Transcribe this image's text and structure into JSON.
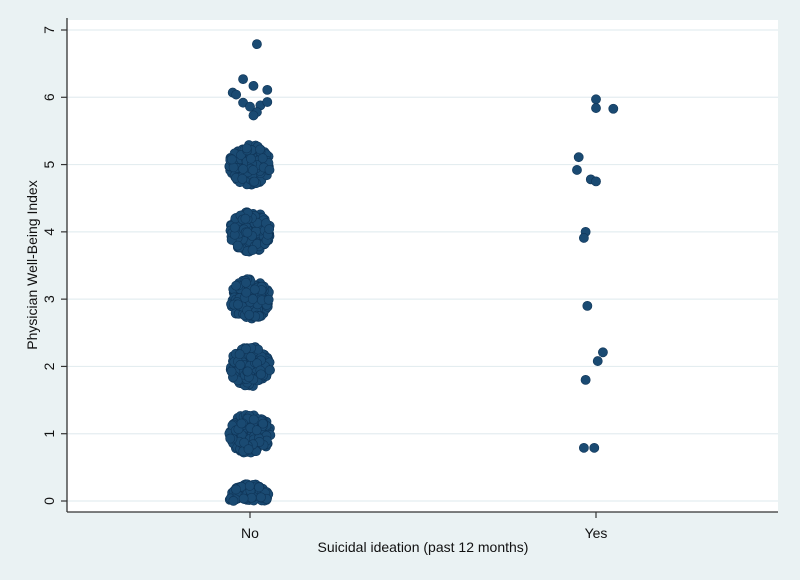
{
  "chart_data": {
    "type": "scatter",
    "title": "",
    "xlabel": "Suicidal ideation (past 12 months)",
    "ylabel": "Physician Well-Being Index",
    "categories": [
      "No",
      "Yes"
    ],
    "yticks": [
      "0",
      "1",
      "2",
      "3",
      "4",
      "5",
      "6",
      "7"
    ],
    "ylim": [
      0,
      7
    ],
    "grid": true,
    "legend": "none",
    "colors": {
      "marker": "#1a4a72",
      "background": "#eaf2f3",
      "plot": "#ffffff",
      "grid": "#e4edf0",
      "axis": "#333333"
    },
    "series": [
      {
        "name": "No",
        "jittered_integer_levels": [
          0,
          1,
          2,
          3,
          4,
          5,
          6
        ],
        "extra_points": [
          {
            "dx": 0.02,
            "y": 6.79
          },
          {
            "dx": -0.02,
            "y": 6.27
          },
          {
            "dx": 0.01,
            "y": 6.17
          },
          {
            "dx": 0.05,
            "y": 6.11
          },
          {
            "dx": -0.05,
            "y": 6.07
          },
          {
            "dx": -0.04,
            "y": 6.04
          },
          {
            "dx": -0.02,
            "y": 5.92
          },
          {
            "dx": 0.0,
            "y": 5.86
          },
          {
            "dx": 0.03,
            "y": 5.88
          },
          {
            "dx": 0.05,
            "y": 5.93
          },
          {
            "dx": 0.02,
            "y": 5.78
          },
          {
            "dx": 0.01,
            "y": 5.73
          }
        ]
      },
      {
        "name": "Yes",
        "points": [
          {
            "dx": 0.0,
            "y": 5.97
          },
          {
            "dx": 0.0,
            "y": 5.84
          },
          {
            "dx": 0.05,
            "y": 5.83
          },
          {
            "dx": -0.05,
            "y": 5.11
          },
          {
            "dx": -0.055,
            "y": 4.92
          },
          {
            "dx": -0.015,
            "y": 4.78
          },
          {
            "dx": 0.0,
            "y": 4.75
          },
          {
            "dx": -0.03,
            "y": 4.0
          },
          {
            "dx": -0.035,
            "y": 3.91
          },
          {
            "dx": -0.025,
            "y": 2.9
          },
          {
            "dx": 0.02,
            "y": 2.21
          },
          {
            "dx": 0.005,
            "y": 2.08
          },
          {
            "dx": -0.03,
            "y": 1.8
          },
          {
            "dx": -0.035,
            "y": 0.79
          },
          {
            "dx": -0.005,
            "y": 0.79
          }
        ]
      }
    ]
  }
}
